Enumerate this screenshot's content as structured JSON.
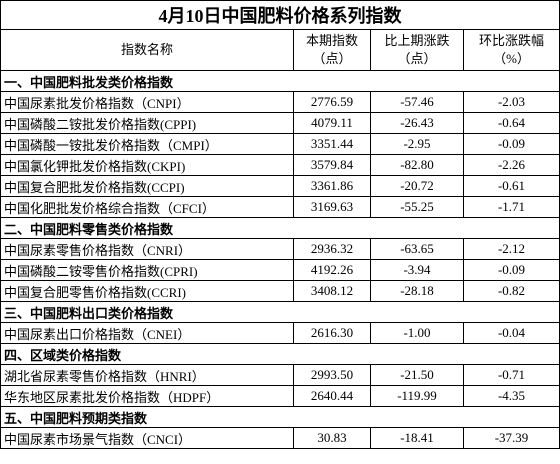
{
  "title": "4月10日中国肥料价格系列指数",
  "header": [
    [
      "指数名称"
    ],
    [
      "本期指数",
      "（点）"
    ],
    [
      "比上期涨跌",
      "（点）"
    ],
    [
      "环比涨跌幅",
      "（%）"
    ]
  ],
  "sections": [
    {
      "title": "一、中国肥料批发类价格指数",
      "rows": [
        [
          "中国尿素批发价格指数（CNPI）",
          "2776.59",
          "-57.46",
          "-2.03"
        ],
        [
          "中国磷酸二铵批发价格指数(CPPI)",
          "4079.11",
          "-26.43",
          "-0.64"
        ],
        [
          "中国磷酸一铵批发价格指数（CMPI）",
          "3351.44",
          "-2.95",
          "-0.09"
        ],
        [
          "中国氯化钾批发价格指数(CKPI)",
          "3579.84",
          "-82.80",
          "-2.26"
        ],
        [
          "中国复合肥批发价格指数(CCPI)",
          "3361.86",
          "-20.72",
          "-0.61"
        ],
        [
          "中国化肥批发价格综合指数（CFCI）",
          "3169.63",
          "-55.25",
          "-1.71"
        ]
      ]
    },
    {
      "title": "二、中国肥料零售类价格指数",
      "rows": [
        [
          "中国尿素零售价格指数（CNRI）",
          "2936.32",
          "-63.65",
          "-2.12"
        ],
        [
          "中国磷酸二铵零售价格指数(CPRI)",
          "4192.26",
          "-3.94",
          "-0.09"
        ],
        [
          "中国复合肥零售价格指数(CCRI)",
          "3408.12",
          "-28.18",
          "-0.82"
        ]
      ]
    },
    {
      "title": "三、中国肥料出口类价格指数",
      "rows": [
        [
          "中国尿素出口价格指数（CNEI）",
          "2616.30",
          "-1.00",
          "-0.04"
        ]
      ]
    },
    {
      "title": "四、区域类价格指数",
      "rows": [
        [
          "湖北省尿素零售价格指数（HNRI）",
          "2993.50",
          "-21.50",
          "-0.71"
        ],
        [
          "华东地区尿素批发价格指数（HDPF）",
          "2640.44",
          "-119.99",
          "-4.35"
        ]
      ]
    },
    {
      "title": "五、中国肥料预期类指数",
      "rows": [
        [
          "中国尿素市场景气指数（CNCI）",
          "30.83",
          "-18.41",
          "-37.39"
        ]
      ]
    }
  ]
}
